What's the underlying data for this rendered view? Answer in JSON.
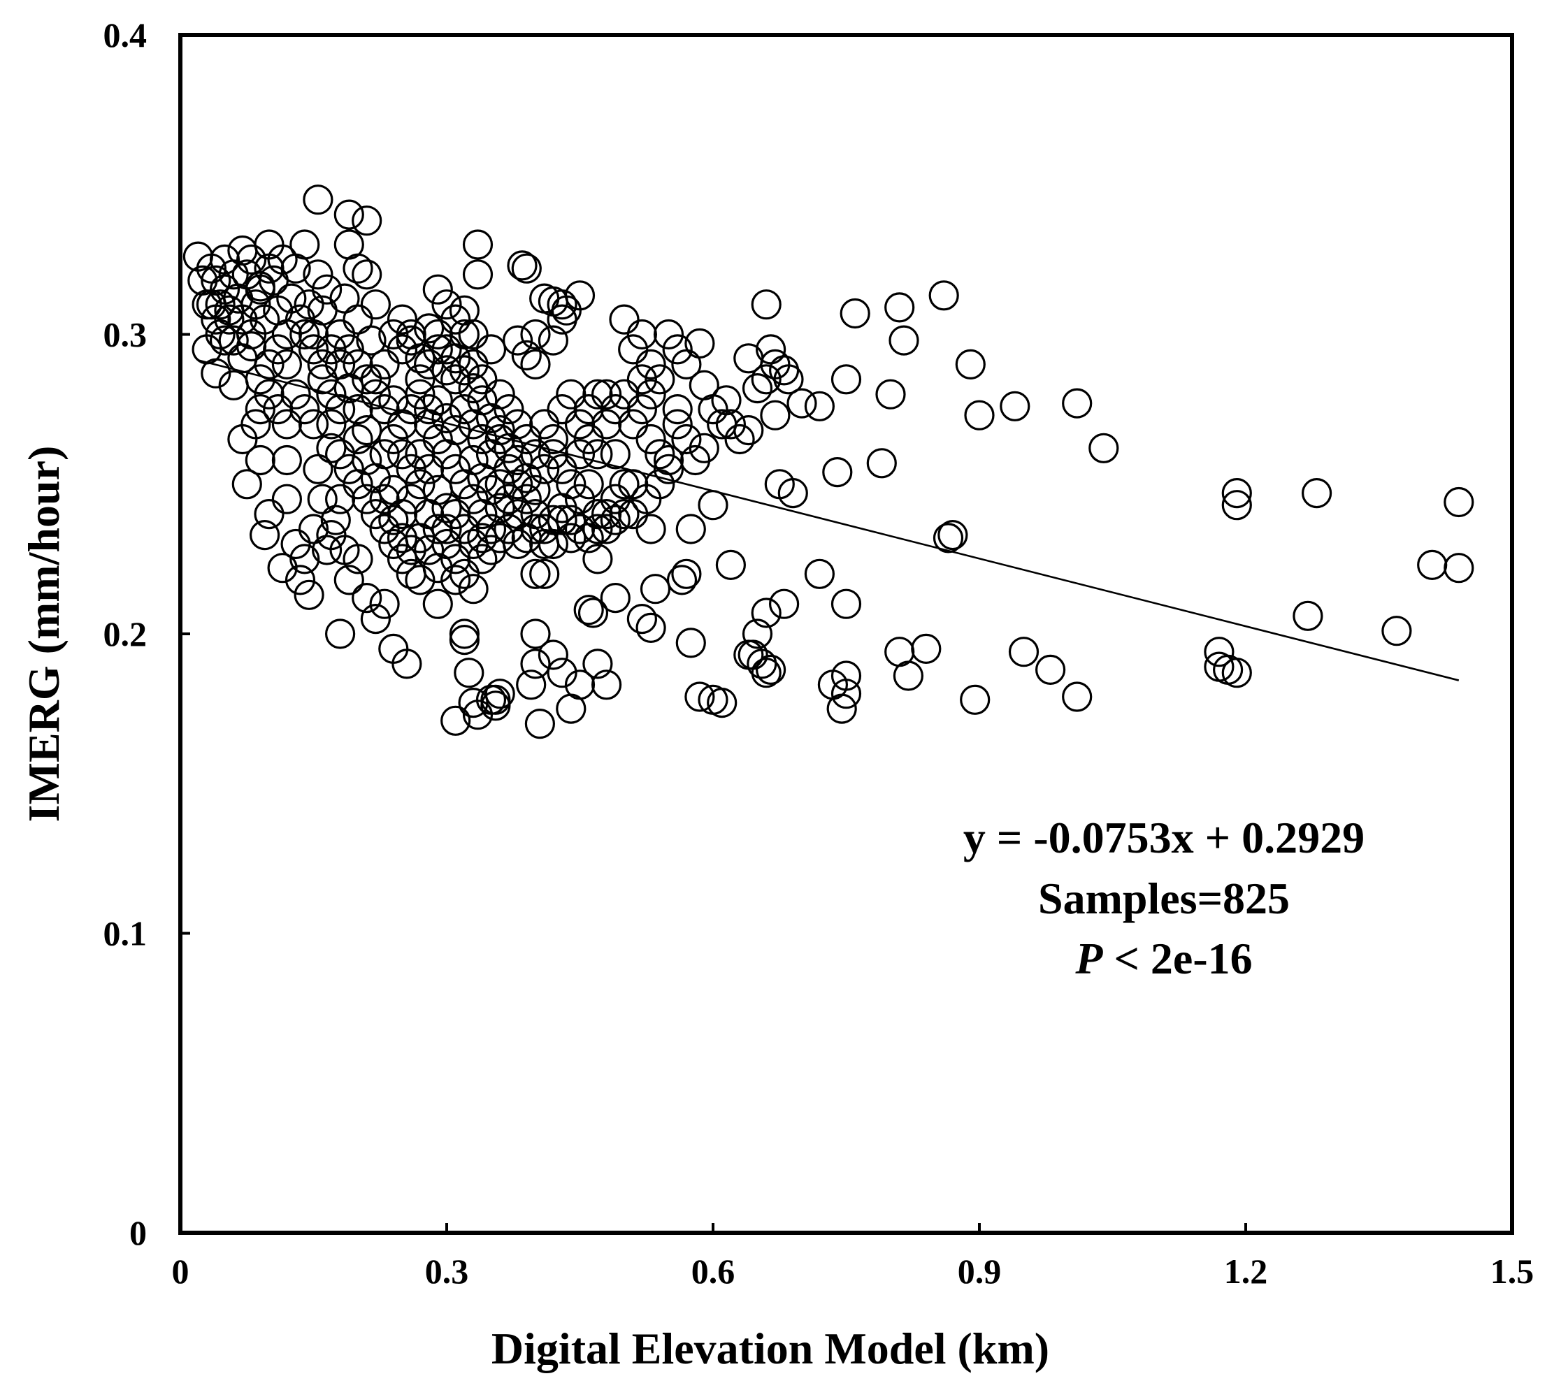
{
  "chart_data": {
    "type": "scatter",
    "xlabel": "Digital Elevation Model (km)",
    "ylabel": "IMERG (mm/hour)",
    "xlim": [
      0,
      1.5
    ],
    "ylim": [
      0,
      0.4
    ],
    "x_ticks": [
      "0",
      "0.3",
      "0.6",
      "0.9",
      "1.2",
      "1.5"
    ],
    "y_ticks": [
      "0",
      "0.1",
      "0.2",
      "0.3",
      "0.4"
    ],
    "x_tick_values": [
      0,
      0.3,
      0.6,
      0.9,
      1.2,
      1.5
    ],
    "y_tick_values": [
      0,
      0.1,
      0.2,
      0.3,
      0.4
    ],
    "trendline": {
      "slope": -0.0753,
      "intercept": 0.2929,
      "x_range": [
        0.02,
        1.44
      ]
    },
    "annotation": {
      "equation": "y = -0.0753x + 0.2929",
      "samples": "Samples=825",
      "p_symbol": "P",
      "p_rest": " < 2e-16"
    },
    "grid": false,
    "marker": "open-circle",
    "points": [
      [
        0.02,
        0.326
      ],
      [
        0.025,
        0.318
      ],
      [
        0.03,
        0.31
      ],
      [
        0.035,
        0.322
      ],
      [
        0.04,
        0.305
      ],
      [
        0.045,
        0.3
      ],
      [
        0.05,
        0.315
      ],
      [
        0.055,
        0.308
      ],
      [
        0.06,
        0.298
      ],
      [
        0.065,
        0.312
      ],
      [
        0.07,
        0.305
      ],
      [
        0.075,
        0.32
      ],
      [
        0.08,
        0.3
      ],
      [
        0.085,
        0.31
      ],
      [
        0.09,
        0.315
      ],
      [
        0.095,
        0.305
      ],
      [
        0.1,
        0.33
      ],
      [
        0.105,
        0.318
      ],
      [
        0.11,
        0.308
      ],
      [
        0.115,
        0.325
      ],
      [
        0.12,
        0.3
      ],
      [
        0.125,
        0.312
      ],
      [
        0.13,
        0.322
      ],
      [
        0.135,
        0.305
      ],
      [
        0.14,
        0.33
      ],
      [
        0.145,
        0.31
      ],
      [
        0.15,
        0.3
      ],
      [
        0.155,
        0.32
      ],
      [
        0.16,
        0.308
      ],
      [
        0.165,
        0.315
      ],
      [
        0.03,
        0.295
      ],
      [
        0.04,
        0.287
      ],
      [
        0.05,
        0.298
      ],
      [
        0.06,
        0.283
      ],
      [
        0.07,
        0.292
      ],
      [
        0.08,
        0.296
      ],
      [
        0.09,
        0.285
      ],
      [
        0.1,
        0.29
      ],
      [
        0.11,
        0.295
      ],
      [
        0.12,
        0.29
      ],
      [
        0.06,
        0.32
      ],
      [
        0.07,
        0.328
      ],
      [
        0.08,
        0.325
      ],
      [
        0.09,
        0.316
      ],
      [
        0.1,
        0.322
      ],
      [
        0.05,
        0.325
      ],
      [
        0.04,
        0.318
      ],
      [
        0.035,
        0.31
      ],
      [
        0.045,
        0.31
      ],
      [
        0.055,
        0.305
      ],
      [
        0.07,
        0.265
      ],
      [
        0.075,
        0.25
      ],
      [
        0.085,
        0.27
      ],
      [
        0.09,
        0.258
      ],
      [
        0.1,
        0.24
      ],
      [
        0.095,
        0.233
      ],
      [
        0.12,
        0.258
      ],
      [
        0.12,
        0.245
      ],
      [
        0.115,
        0.222
      ],
      [
        0.13,
        0.23
      ],
      [
        0.14,
        0.225
      ],
      [
        0.135,
        0.218
      ],
      [
        0.145,
        0.213
      ],
      [
        0.15,
        0.235
      ],
      [
        0.155,
        0.255
      ],
      [
        0.16,
        0.245
      ],
      [
        0.165,
        0.228
      ],
      [
        0.17,
        0.262
      ],
      [
        0.175,
        0.238
      ],
      [
        0.18,
        0.2
      ],
      [
        0.155,
        0.345
      ],
      [
        0.19,
        0.34
      ],
      [
        0.21,
        0.338
      ],
      [
        0.19,
        0.33
      ],
      [
        0.2,
        0.322
      ],
      [
        0.21,
        0.32
      ],
      [
        0.185,
        0.312
      ],
      [
        0.2,
        0.305
      ],
      [
        0.22,
        0.31
      ],
      [
        0.215,
        0.298
      ],
      [
        0.18,
        0.29
      ],
      [
        0.19,
        0.282
      ],
      [
        0.2,
        0.275
      ],
      [
        0.21,
        0.268
      ],
      [
        0.22,
        0.285
      ],
      [
        0.23,
        0.29
      ],
      [
        0.24,
        0.278
      ],
      [
        0.25,
        0.295
      ],
      [
        0.26,
        0.3
      ],
      [
        0.27,
        0.285
      ],
      [
        0.17,
        0.27
      ],
      [
        0.18,
        0.26
      ],
      [
        0.19,
        0.255
      ],
      [
        0.2,
        0.25
      ],
      [
        0.21,
        0.245
      ],
      [
        0.22,
        0.24
      ],
      [
        0.23,
        0.235
      ],
      [
        0.24,
        0.23
      ],
      [
        0.25,
        0.225
      ],
      [
        0.26,
        0.22
      ],
      [
        0.19,
        0.218
      ],
      [
        0.2,
        0.225
      ],
      [
        0.21,
        0.212
      ],
      [
        0.22,
        0.205
      ],
      [
        0.23,
        0.21
      ],
      [
        0.24,
        0.195
      ],
      [
        0.255,
        0.19
      ],
      [
        0.17,
        0.233
      ],
      [
        0.18,
        0.245
      ],
      [
        0.185,
        0.228
      ],
      [
        0.28,
        0.29
      ],
      [
        0.29,
        0.3
      ],
      [
        0.3,
        0.295
      ],
      [
        0.31,
        0.285
      ],
      [
        0.32,
        0.3
      ],
      [
        0.33,
        0.29
      ],
      [
        0.34,
        0.285
      ],
      [
        0.35,
        0.295
      ],
      [
        0.36,
        0.28
      ],
      [
        0.37,
        0.275
      ],
      [
        0.29,
        0.315
      ],
      [
        0.3,
        0.31
      ],
      [
        0.31,
        0.305
      ],
      [
        0.32,
        0.308
      ],
      [
        0.33,
        0.3
      ],
      [
        0.335,
        0.33
      ],
      [
        0.335,
        0.32
      ],
      [
        0.38,
        0.298
      ],
      [
        0.39,
        0.293
      ],
      [
        0.4,
        0.29
      ],
      [
        0.28,
        0.27
      ],
      [
        0.29,
        0.265
      ],
      [
        0.3,
        0.26
      ],
      [
        0.31,
        0.255
      ],
      [
        0.32,
        0.25
      ],
      [
        0.33,
        0.245
      ],
      [
        0.34,
        0.24
      ],
      [
        0.35,
        0.235
      ],
      [
        0.36,
        0.25
      ],
      [
        0.37,
        0.255
      ],
      [
        0.28,
        0.24
      ],
      [
        0.29,
        0.235
      ],
      [
        0.3,
        0.23
      ],
      [
        0.31,
        0.225
      ],
      [
        0.32,
        0.22
      ],
      [
        0.33,
        0.215
      ],
      [
        0.27,
        0.218
      ],
      [
        0.29,
        0.21
      ],
      [
        0.31,
        0.218
      ],
      [
        0.34,
        0.225
      ],
      [
        0.32,
        0.2
      ],
      [
        0.32,
        0.198
      ],
      [
        0.325,
        0.187
      ],
      [
        0.33,
        0.177
      ],
      [
        0.335,
        0.173
      ],
      [
        0.31,
        0.171
      ],
      [
        0.35,
        0.178
      ],
      [
        0.355,
        0.176
      ],
      [
        0.36,
        0.18
      ],
      [
        0.355,
        0.178
      ],
      [
        0.38,
        0.27
      ],
      [
        0.39,
        0.265
      ],
      [
        0.4,
        0.26
      ],
      [
        0.41,
        0.27
      ],
      [
        0.42,
        0.265
      ],
      [
        0.43,
        0.275
      ],
      [
        0.44,
        0.28
      ],
      [
        0.45,
        0.27
      ],
      [
        0.46,
        0.265
      ],
      [
        0.47,
        0.26
      ],
      [
        0.38,
        0.25
      ],
      [
        0.39,
        0.245
      ],
      [
        0.4,
        0.24
      ],
      [
        0.41,
        0.235
      ],
      [
        0.42,
        0.23
      ],
      [
        0.43,
        0.238
      ],
      [
        0.44,
        0.232
      ],
      [
        0.45,
        0.245
      ],
      [
        0.46,
        0.25
      ],
      [
        0.47,
        0.24
      ],
      [
        0.385,
        0.323
      ],
      [
        0.39,
        0.322
      ],
      [
        0.41,
        0.312
      ],
      [
        0.42,
        0.311
      ],
      [
        0.43,
        0.305
      ],
      [
        0.435,
        0.308
      ],
      [
        0.45,
        0.313
      ],
      [
        0.43,
        0.31
      ],
      [
        0.4,
        0.3
      ],
      [
        0.42,
        0.298
      ],
      [
        0.4,
        0.22
      ],
      [
        0.41,
        0.22
      ],
      [
        0.4,
        0.2
      ],
      [
        0.4,
        0.19
      ],
      [
        0.395,
        0.183
      ],
      [
        0.42,
        0.193
      ],
      [
        0.43,
        0.187
      ],
      [
        0.44,
        0.175
      ],
      [
        0.45,
        0.183
      ],
      [
        0.405,
        0.17
      ],
      [
        0.46,
        0.208
      ],
      [
        0.465,
        0.207
      ],
      [
        0.47,
        0.19
      ],
      [
        0.48,
        0.183
      ],
      [
        0.49,
        0.212
      ],
      [
        0.47,
        0.225
      ],
      [
        0.48,
        0.235
      ],
      [
        0.49,
        0.245
      ],
      [
        0.5,
        0.24
      ],
      [
        0.51,
        0.25
      ],
      [
        0.5,
        0.305
      ],
      [
        0.51,
        0.295
      ],
      [
        0.52,
        0.3
      ],
      [
        0.53,
        0.29
      ],
      [
        0.54,
        0.285
      ],
      [
        0.55,
        0.3
      ],
      [
        0.56,
        0.295
      ],
      [
        0.57,
        0.29
      ],
      [
        0.585,
        0.297
      ],
      [
        0.59,
        0.283
      ],
      [
        0.48,
        0.28
      ],
      [
        0.49,
        0.275
      ],
      [
        0.5,
        0.28
      ],
      [
        0.51,
        0.27
      ],
      [
        0.52,
        0.275
      ],
      [
        0.53,
        0.265
      ],
      [
        0.54,
        0.26
      ],
      [
        0.55,
        0.255
      ],
      [
        0.56,
        0.27
      ],
      [
        0.57,
        0.265
      ],
      [
        0.52,
        0.205
      ],
      [
        0.53,
        0.202
      ],
      [
        0.535,
        0.215
      ],
      [
        0.53,
        0.235
      ],
      [
        0.525,
        0.245
      ],
      [
        0.54,
        0.25
      ],
      [
        0.55,
        0.258
      ],
      [
        0.56,
        0.275
      ],
      [
        0.575,
        0.235
      ],
      [
        0.57,
        0.22
      ],
      [
        0.565,
        0.218
      ],
      [
        0.575,
        0.197
      ],
      [
        0.585,
        0.179
      ],
      [
        0.6,
        0.178
      ],
      [
        0.61,
        0.177
      ],
      [
        0.58,
        0.258
      ],
      [
        0.59,
        0.262
      ],
      [
        0.6,
        0.243
      ],
      [
        0.62,
        0.223
      ],
      [
        0.61,
        0.27
      ],
      [
        0.6,
        0.275
      ],
      [
        0.615,
        0.278
      ],
      [
        0.62,
        0.27
      ],
      [
        0.63,
        0.265
      ],
      [
        0.64,
        0.268
      ],
      [
        0.64,
        0.292
      ],
      [
        0.65,
        0.282
      ],
      [
        0.66,
        0.285
      ],
      [
        0.665,
        0.295
      ],
      [
        0.67,
        0.29
      ],
      [
        0.66,
        0.31
      ],
      [
        0.68,
        0.288
      ],
      [
        0.685,
        0.285
      ],
      [
        0.7,
        0.277
      ],
      [
        0.72,
        0.276
      ],
      [
        0.67,
        0.273
      ],
      [
        0.675,
        0.25
      ],
      [
        0.69,
        0.247
      ],
      [
        0.68,
        0.21
      ],
      [
        0.66,
        0.207
      ],
      [
        0.64,
        0.193
      ],
      [
        0.645,
        0.193
      ],
      [
        0.65,
        0.2
      ],
      [
        0.655,
        0.19
      ],
      [
        0.66,
        0.187
      ],
      [
        0.665,
        0.188
      ],
      [
        0.72,
        0.22
      ],
      [
        0.735,
        0.183
      ],
      [
        0.745,
        0.175
      ],
      [
        0.75,
        0.18
      ],
      [
        0.75,
        0.186
      ],
      [
        0.75,
        0.21
      ],
      [
        0.74,
        0.254
      ],
      [
        0.75,
        0.285
      ],
      [
        0.76,
        0.307
      ],
      [
        0.79,
        0.257
      ],
      [
        0.8,
        0.28
      ],
      [
        0.81,
        0.309
      ],
      [
        0.815,
        0.298
      ],
      [
        0.81,
        0.194
      ],
      [
        0.82,
        0.186
      ],
      [
        0.84,
        0.195
      ],
      [
        0.86,
        0.313
      ],
      [
        0.865,
        0.232
      ],
      [
        0.87,
        0.233
      ],
      [
        0.89,
        0.29
      ],
      [
        0.9,
        0.273
      ],
      [
        0.895,
        0.178
      ],
      [
        0.94,
        0.276
      ],
      [
        0.95,
        0.194
      ],
      [
        0.98,
        0.188
      ],
      [
        1.01,
        0.277
      ],
      [
        1.01,
        0.179
      ],
      [
        1.04,
        0.262
      ],
      [
        1.17,
        0.194
      ],
      [
        1.17,
        0.189
      ],
      [
        1.18,
        0.188
      ],
      [
        1.19,
        0.187
      ],
      [
        1.19,
        0.247
      ],
      [
        1.19,
        0.243
      ],
      [
        1.27,
        0.206
      ],
      [
        1.28,
        0.247
      ],
      [
        1.37,
        0.201
      ],
      [
        1.41,
        0.223
      ],
      [
        1.44,
        0.244
      ],
      [
        1.44,
        0.222
      ],
      [
        0.25,
        0.26
      ],
      [
        0.26,
        0.255
      ],
      [
        0.27,
        0.26
      ],
      [
        0.26,
        0.245
      ],
      [
        0.27,
        0.25
      ],
      [
        0.28,
        0.255
      ],
      [
        0.29,
        0.248
      ],
      [
        0.3,
        0.242
      ],
      [
        0.25,
        0.24
      ],
      [
        0.24,
        0.248
      ],
      [
        0.23,
        0.26
      ],
      [
        0.24,
        0.265
      ],
      [
        0.25,
        0.27
      ],
      [
        0.26,
        0.275
      ],
      [
        0.27,
        0.28
      ],
      [
        0.28,
        0.275
      ],
      [
        0.29,
        0.278
      ],
      [
        0.3,
        0.272
      ],
      [
        0.31,
        0.268
      ],
      [
        0.32,
        0.275
      ],
      [
        0.33,
        0.27
      ],
      [
        0.34,
        0.265
      ],
      [
        0.35,
        0.26
      ],
      [
        0.36,
        0.265
      ],
      [
        0.37,
        0.245
      ],
      [
        0.38,
        0.24
      ],
      [
        0.33,
        0.258
      ],
      [
        0.34,
        0.252
      ],
      [
        0.35,
        0.248
      ],
      [
        0.36,
        0.242
      ],
      [
        0.14,
        0.3
      ],
      [
        0.15,
        0.295
      ],
      [
        0.16,
        0.29
      ],
      [
        0.17,
        0.295
      ],
      [
        0.18,
        0.3
      ],
      [
        0.19,
        0.295
      ],
      [
        0.2,
        0.29
      ],
      [
        0.21,
        0.285
      ],
      [
        0.22,
        0.28
      ],
      [
        0.23,
        0.275
      ],
      [
        0.13,
        0.28
      ],
      [
        0.14,
        0.275
      ],
      [
        0.15,
        0.27
      ],
      [
        0.16,
        0.285
      ],
      [
        0.17,
        0.28
      ],
      [
        0.18,
        0.275
      ],
      [
        0.12,
        0.27
      ],
      [
        0.11,
        0.275
      ],
      [
        0.1,
        0.28
      ],
      [
        0.09,
        0.275
      ],
      [
        0.24,
        0.3
      ],
      [
        0.25,
        0.305
      ],
      [
        0.26,
        0.298
      ],
      [
        0.27,
        0.292
      ],
      [
        0.28,
        0.302
      ],
      [
        0.29,
        0.295
      ],
      [
        0.3,
        0.288
      ],
      [
        0.31,
        0.292
      ],
      [
        0.32,
        0.288
      ],
      [
        0.33,
        0.282
      ],
      [
        0.34,
        0.278
      ],
      [
        0.35,
        0.272
      ],
      [
        0.36,
        0.268
      ],
      [
        0.37,
        0.262
      ],
      [
        0.38,
        0.258
      ],
      [
        0.39,
        0.252
      ],
      [
        0.4,
        0.248
      ],
      [
        0.41,
        0.255
      ],
      [
        0.42,
        0.26
      ],
      [
        0.43,
        0.255
      ],
      [
        0.44,
        0.25
      ],
      [
        0.45,
        0.26
      ],
      [
        0.46,
        0.275
      ],
      [
        0.47,
        0.28
      ],
      [
        0.48,
        0.27
      ],
      [
        0.49,
        0.26
      ],
      [
        0.5,
        0.25
      ],
      [
        0.51,
        0.24
      ],
      [
        0.52,
        0.285
      ],
      [
        0.53,
        0.28
      ],
      [
        0.2,
        0.265
      ],
      [
        0.21,
        0.258
      ],
      [
        0.22,
        0.252
      ],
      [
        0.23,
        0.245
      ],
      [
        0.24,
        0.238
      ],
      [
        0.25,
        0.232
      ],
      [
        0.26,
        0.228
      ],
      [
        0.27,
        0.232
      ],
      [
        0.28,
        0.228
      ],
      [
        0.29,
        0.222
      ],
      [
        0.3,
        0.235
      ],
      [
        0.31,
        0.24
      ],
      [
        0.32,
        0.235
      ],
      [
        0.33,
        0.23
      ],
      [
        0.34,
        0.232
      ],
      [
        0.35,
        0.228
      ],
      [
        0.36,
        0.232
      ],
      [
        0.37,
        0.235
      ],
      [
        0.38,
        0.23
      ],
      [
        0.39,
        0.232
      ],
      [
        0.4,
        0.235
      ],
      [
        0.41,
        0.23
      ],
      [
        0.42,
        0.238
      ],
      [
        0.43,
        0.242
      ],
      [
        0.44,
        0.238
      ],
      [
        0.45,
        0.235
      ],
      [
        0.46,
        0.232
      ],
      [
        0.47,
        0.235
      ],
      [
        0.48,
        0.24
      ],
      [
        0.49,
        0.238
      ]
    ]
  }
}
